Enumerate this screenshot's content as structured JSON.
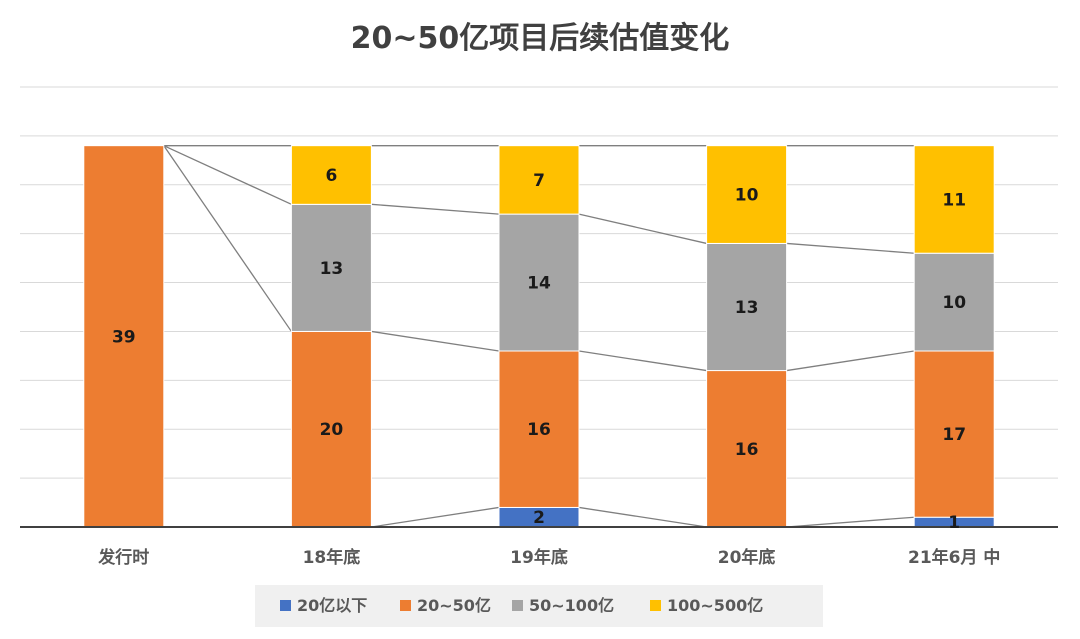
{
  "chart_data": {
    "type": "bar",
    "stacked": true,
    "title": "20~50亿项目后续估值变化",
    "categories": [
      "发行时",
      "18年底",
      "19年底",
      "20年底",
      "21年6月 中"
    ],
    "series": [
      {
        "name": "20亿以下",
        "color": "#4472c4",
        "values": [
          0,
          0,
          2,
          0,
          1
        ]
      },
      {
        "name": "20~50亿",
        "color": "#ed7d31",
        "values": [
          39,
          20,
          16,
          16,
          17
        ]
      },
      {
        "name": "50~100亿",
        "color": "#a5a5a5",
        "values": [
          0,
          13,
          14,
          13,
          10
        ]
      },
      {
        "name": "100~500亿",
        "color": "#ffc000",
        "values": [
          0,
          6,
          7,
          10,
          11
        ]
      }
    ],
    "ylim": [
      0,
      45
    ],
    "grid": true,
    "legend": "bottom",
    "series_lines": true
  }
}
